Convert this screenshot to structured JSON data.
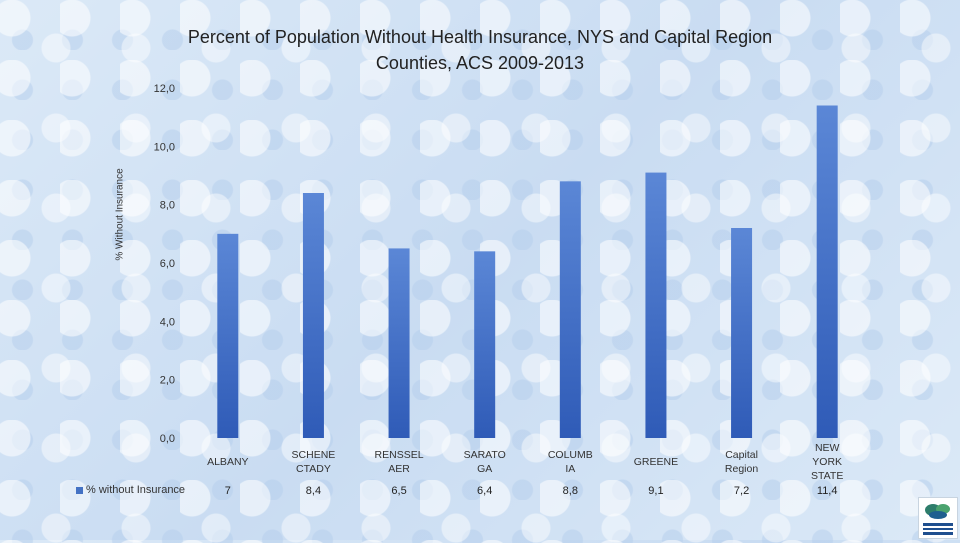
{
  "chart_data": {
    "type": "bar",
    "title_lines": [
      "Percent of Population Without Health Insurance, NYS and Capital Region",
      "Counties,  ACS 2009-2013"
    ],
    "ylabel": "% Without Insurance",
    "ylim": [
      0,
      12
    ],
    "yticks": [
      "0,0",
      "2,0",
      "4,0",
      "6,0",
      "8,0",
      "10,0",
      "12,0"
    ],
    "categories": [
      [
        "ALBANY"
      ],
      [
        "SCHENE",
        "CTADY"
      ],
      [
        "RENSSEL",
        "AER"
      ],
      [
        "SARATO",
        "GA"
      ],
      [
        "COLUMB",
        "IA"
      ],
      [
        "GREENE"
      ],
      [
        "Capital",
        "Region"
      ],
      [
        "NEW",
        "YORK",
        "STATE"
      ]
    ],
    "series": [
      {
        "name": "% without Insurance",
        "values": [
          7.0,
          8.4,
          6.5,
          6.4,
          8.8,
          9.1,
          7.2,
          11.4
        ],
        "value_labels": [
          "7",
          "8,4",
          "6,5",
          "6,4",
          "8,8",
          "9,1",
          "7,2",
          "11,4"
        ]
      }
    ],
    "colors": {
      "bar_top": "#5b87d6",
      "bar_bottom": "#2f5bb7"
    },
    "legend": "bottom-left data table"
  }
}
